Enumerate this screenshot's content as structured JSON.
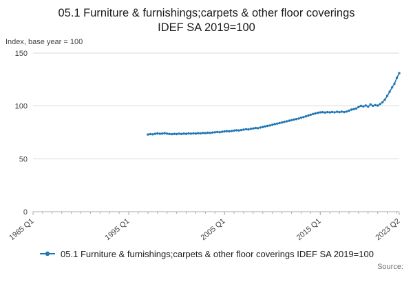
{
  "page": {
    "title_line1": "05.1 Furniture & furnishings;carpets & other floor coverings",
    "title_line2": "IDEF SA 2019=100",
    "axis_note": "Index, base year = 100",
    "source_label": "Source:"
  },
  "legend": {
    "label": "05.1 Furniture & furnishings;carpets & other floor coverings IDEF SA 2019=100",
    "color": "#1f77b4"
  },
  "chart_data": {
    "type": "line",
    "title": "05.1 Furniture & furnishings;carpets & other floor coverings IDEF SA 2019=100",
    "xlabel": "",
    "ylabel": "Index, base year = 100",
    "ylim": [
      0,
      150
    ],
    "yticks": [
      0,
      50,
      100,
      150
    ],
    "grid": "horizontal",
    "legend_position": "bottom",
    "x_axis": {
      "start": "1985 Q1",
      "end": "2023 Q2",
      "frequency": "quarterly",
      "tick_labels": [
        "1985 Q1",
        "1995 Q1",
        "2005 Q1",
        "2015 Q1",
        "2023 Q2"
      ]
    },
    "series": [
      {
        "name": "05.1 Furniture & furnishings;carpets & other floor coverings IDEF SA 2019=100",
        "color": "#1f77b4",
        "start": "1997 Q1",
        "frequency": "quarterly",
        "values": [
          73.0,
          73.4,
          73.2,
          73.6,
          74.0,
          73.7,
          73.9,
          74.2,
          73.8,
          73.5,
          73.3,
          73.6,
          73.4,
          73.8,
          73.5,
          73.9,
          73.6,
          74.0,
          73.8,
          74.1,
          73.9,
          74.3,
          74.1,
          74.5,
          74.3,
          74.7,
          74.5,
          74.9,
          75.1,
          75.4,
          75.2,
          75.6,
          75.9,
          76.2,
          76.0,
          76.4,
          76.7,
          77.0,
          76.8,
          77.2,
          77.6,
          78.0,
          77.8,
          78.3,
          78.7,
          79.2,
          79.0,
          79.6,
          80.1,
          80.7,
          81.2,
          81.6,
          82.2,
          82.8,
          83.3,
          83.8,
          84.4,
          85.0,
          85.5,
          86.0,
          86.6,
          87.1,
          87.6,
          88.1,
          88.8,
          89.5,
          90.2,
          90.9,
          91.7,
          92.4,
          93.0,
          93.5,
          93.9,
          94.1,
          93.8,
          94.2,
          93.9,
          94.3,
          94.0,
          94.5,
          94.1,
          94.6,
          94.2,
          94.7,
          95.5,
          96.5,
          97.0,
          97.5,
          99.0,
          100.2,
          99.5,
          100.5,
          99.3,
          101.5,
          100.2,
          100.8,
          100.4,
          101.8,
          103.5,
          106.0,
          109.5,
          113.5,
          117.5,
          121.0,
          126.5,
          131.0
        ]
      }
    ]
  }
}
